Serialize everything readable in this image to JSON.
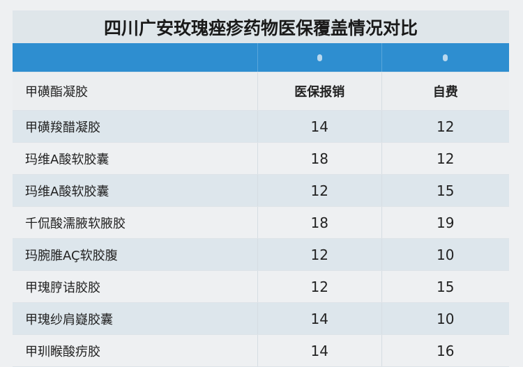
{
  "title": "四川广安玫瑰痤疹药物医保覆盖情况对比",
  "header": {
    "drug": "甲磺酯凝胶",
    "col1": "医保报销",
    "col2": "自费"
  },
  "accent": "#2e8ed0",
  "rows": [
    {
      "drug": "甲磺羧醋凝胶",
      "insured": "14",
      "self": "12"
    },
    {
      "drug": "玛维A酸软胶囊",
      "insured": "18",
      "self": "12"
    },
    {
      "drug": "玛维A酸软胶囊",
      "insured": "12",
      "self": "15"
    },
    {
      "drug": "千侃酸濡腋软腋胶",
      "insured": "18",
      "self": "19"
    },
    {
      "drug": "玛腕脽AÇ软胶腹",
      "insured": "12",
      "self": "10"
    },
    {
      "drug": "甲瑰脝诘胶胶",
      "insured": "12",
      "self": "15"
    },
    {
      "drug": "甲瑰纱肩嶷胶囊",
      "insured": "14",
      "self": "10"
    },
    {
      "drug": "甲玔睺酸疠胶",
      "insured": "14",
      "self": "16"
    }
  ]
}
